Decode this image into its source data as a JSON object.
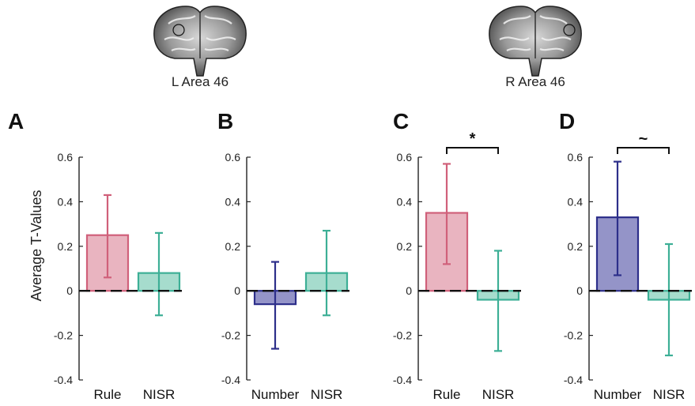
{
  "brains": [
    {
      "label": "L Area 46",
      "roi_side": "left"
    },
    {
      "label": "R Area 46",
      "roi_side": "right"
    }
  ],
  "y_axis_label": "Average T-Values",
  "colors": {
    "rule": "#d0607a",
    "rule_fill": "#e9b4c0",
    "nisr": "#3daf96",
    "nisr_fill": "#a6dccd",
    "number": "#2d2f8a",
    "number_fill": "#9494c8"
  },
  "chart_data": [
    {
      "panel": "A",
      "type": "bar",
      "ylim": [
        -0.4,
        0.6
      ],
      "yticks": [
        "0.6",
        "0.4",
        "0.2",
        "0",
        "-0.2",
        "-0.4"
      ],
      "categories": [
        "Rule",
        "NISR"
      ],
      "values": [
        0.25,
        0.08
      ],
      "error_low": [
        0.06,
        -0.11
      ],
      "error_high": [
        0.43,
        0.26
      ],
      "significance": ""
    },
    {
      "panel": "B",
      "type": "bar",
      "ylim": [
        -0.4,
        0.6
      ],
      "yticks": [
        "0.6",
        "0.4",
        "0.2",
        "0",
        "-0.2",
        "-0.4"
      ],
      "categories": [
        "Number",
        "NISR"
      ],
      "values": [
        -0.06,
        0.08
      ],
      "error_low": [
        -0.26,
        -0.11
      ],
      "error_high": [
        0.13,
        0.27
      ],
      "significance": ""
    },
    {
      "panel": "C",
      "type": "bar",
      "ylim": [
        -0.4,
        0.6
      ],
      "yticks": [
        "0.6",
        "0.4",
        "0.2",
        "0",
        "-0.2",
        "-0.4"
      ],
      "categories": [
        "Rule",
        "NISR"
      ],
      "values": [
        0.35,
        -0.04
      ],
      "error_low": [
        0.12,
        -0.27
      ],
      "error_high": [
        0.57,
        0.18
      ],
      "significance": "*"
    },
    {
      "panel": "D",
      "type": "bar",
      "ylim": [
        -0.4,
        0.6
      ],
      "yticks": [
        "0.6",
        "0.4",
        "0.2",
        "0",
        "-0.2",
        "-0.4"
      ],
      "categories": [
        "Number",
        "NISR"
      ],
      "values": [
        0.33,
        -0.04
      ],
      "error_low": [
        0.07,
        -0.29
      ],
      "error_high": [
        0.58,
        0.21
      ],
      "significance": "~"
    }
  ]
}
